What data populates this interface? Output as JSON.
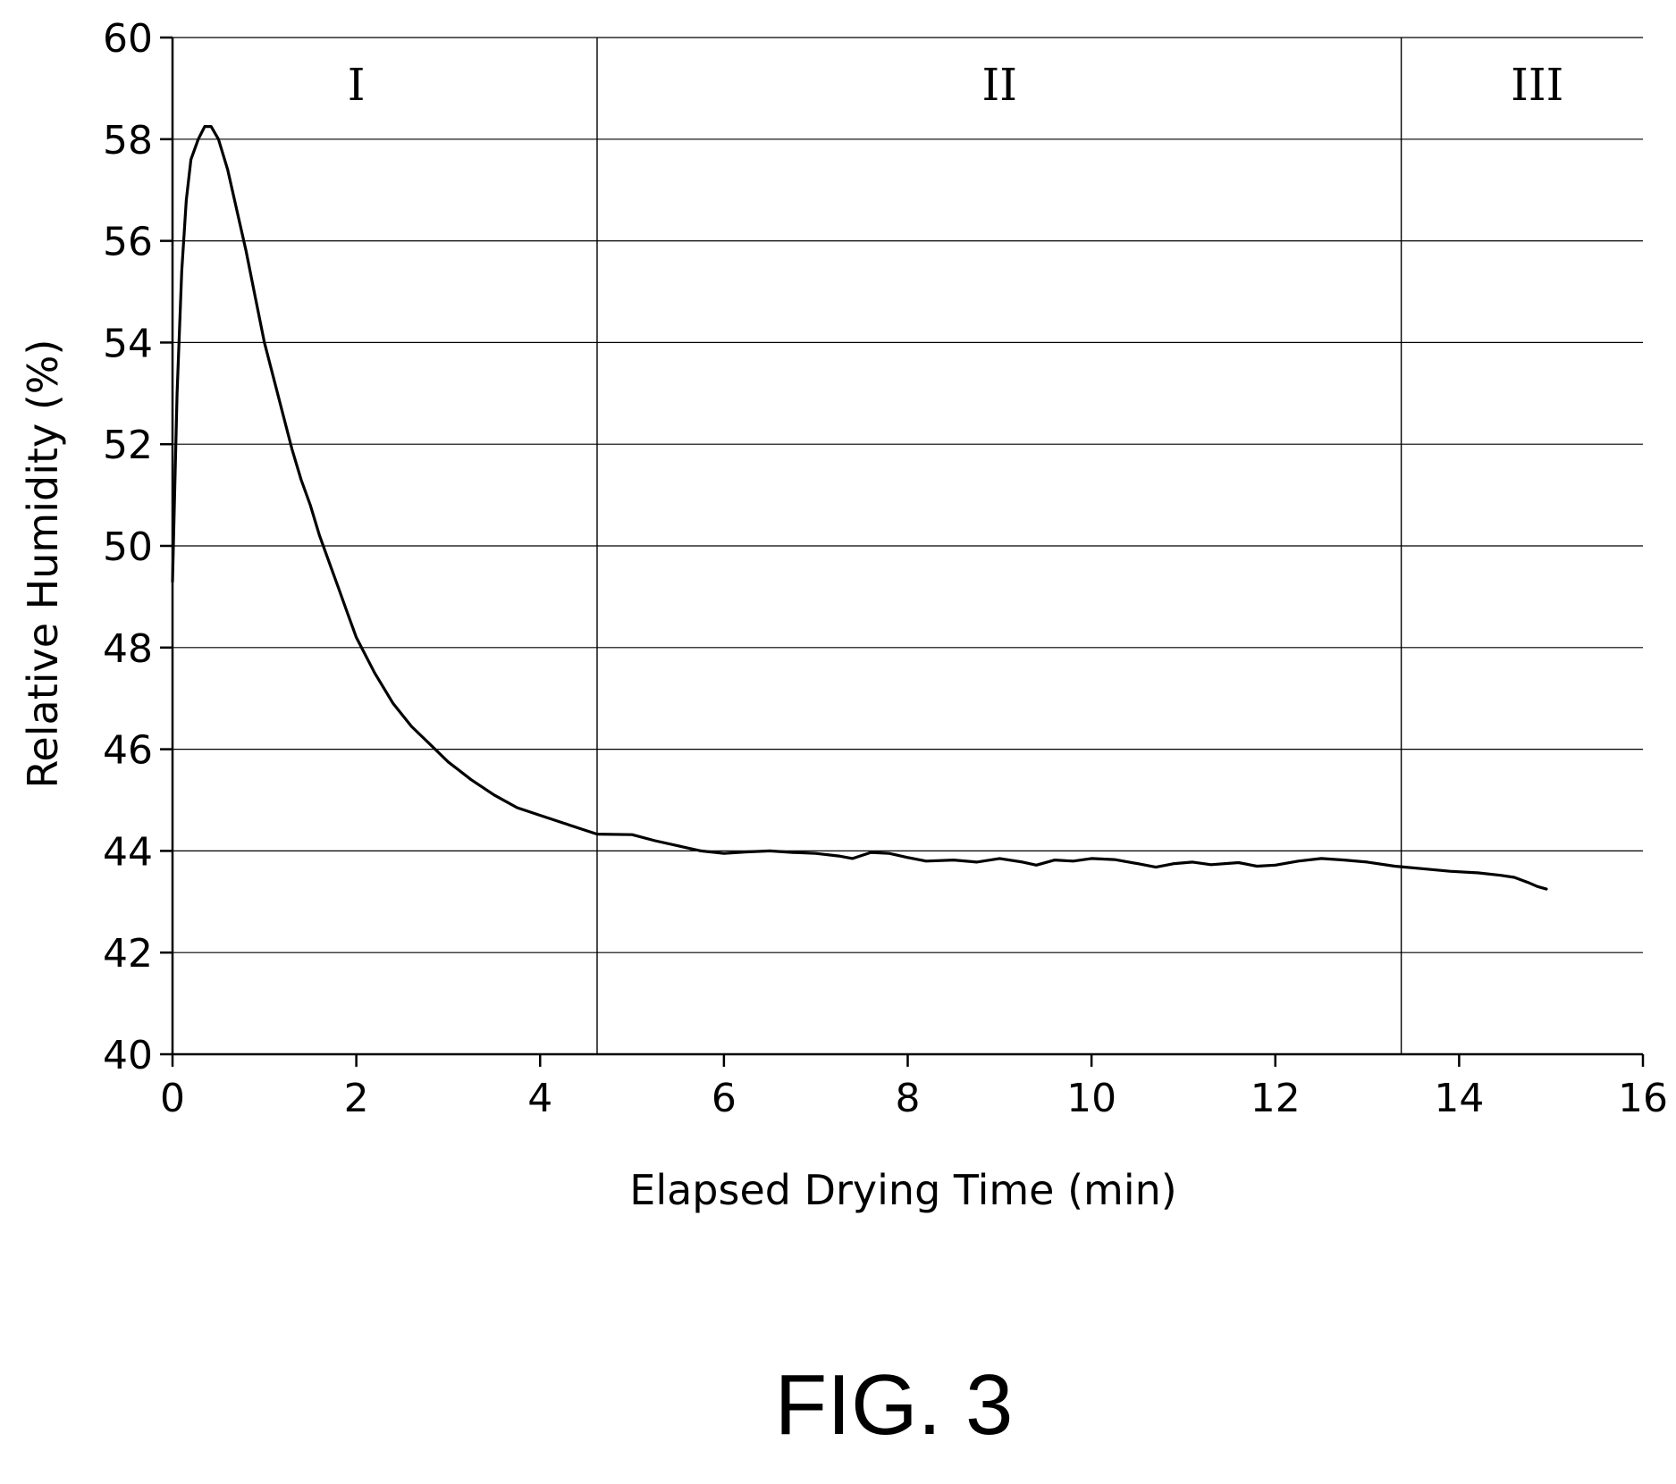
{
  "chart_data": {
    "type": "line",
    "title": "",
    "xlabel": "Elapsed Drying Time (min)",
    "ylabel": "Relative Humidity (%)",
    "xlim": [
      0,
      16
    ],
    "ylim": [
      40,
      60
    ],
    "x_ticks": [
      0,
      2,
      4,
      6,
      8,
      10,
      12,
      14,
      16
    ],
    "y_ticks": [
      40,
      42,
      44,
      46,
      48,
      50,
      52,
      54,
      56,
      58,
      60
    ],
    "grid": {
      "horizontal": true,
      "vertical": false
    },
    "region_boundaries": [
      4.62,
      13.37
    ],
    "regions": [
      {
        "label": "I",
        "x": 2.0
      },
      {
        "label": "II",
        "x": 9.0
      },
      {
        "label": "III",
        "x": 14.85
      }
    ],
    "series": [
      {
        "color": "#000000",
        "points": [
          [
            0.0,
            49.3
          ],
          [
            0.05,
            53.0
          ],
          [
            0.1,
            55.4
          ],
          [
            0.15,
            56.8
          ],
          [
            0.2,
            57.6
          ],
          [
            0.28,
            58.0
          ],
          [
            0.35,
            58.25
          ],
          [
            0.42,
            58.25
          ],
          [
            0.5,
            58.0
          ],
          [
            0.6,
            57.4
          ],
          [
            0.7,
            56.6
          ],
          [
            0.8,
            55.8
          ],
          [
            0.9,
            54.9
          ],
          [
            1.0,
            54.0
          ],
          [
            1.1,
            53.3
          ],
          [
            1.2,
            52.6
          ],
          [
            1.3,
            51.9
          ],
          [
            1.4,
            51.3
          ],
          [
            1.5,
            50.8
          ],
          [
            1.6,
            50.2
          ],
          [
            1.7,
            49.7
          ],
          [
            1.8,
            49.2
          ],
          [
            1.9,
            48.7
          ],
          [
            2.0,
            48.2
          ],
          [
            2.2,
            47.5
          ],
          [
            2.4,
            46.9
          ],
          [
            2.6,
            46.45
          ],
          [
            2.8,
            46.1
          ],
          [
            3.0,
            45.75
          ],
          [
            3.25,
            45.4
          ],
          [
            3.5,
            45.1
          ],
          [
            3.75,
            44.85
          ],
          [
            4.0,
            44.7
          ],
          [
            4.25,
            44.55
          ],
          [
            4.5,
            44.4
          ],
          [
            4.62,
            44.33
          ],
          [
            5.0,
            44.32
          ],
          [
            5.25,
            44.2
          ],
          [
            5.5,
            44.1
          ],
          [
            5.75,
            44.0
          ],
          [
            6.0,
            43.95
          ],
          [
            6.25,
            43.98
          ],
          [
            6.5,
            44.0
          ],
          [
            6.75,
            43.97
          ],
          [
            7.0,
            43.95
          ],
          [
            7.25,
            43.9
          ],
          [
            7.4,
            43.85
          ],
          [
            7.6,
            43.97
          ],
          [
            7.8,
            43.95
          ],
          [
            8.0,
            43.87
          ],
          [
            8.2,
            43.8
          ],
          [
            8.5,
            43.82
          ],
          [
            8.75,
            43.78
          ],
          [
            9.0,
            43.85
          ],
          [
            9.25,
            43.78
          ],
          [
            9.4,
            43.72
          ],
          [
            9.6,
            43.82
          ],
          [
            9.8,
            43.8
          ],
          [
            10.0,
            43.85
          ],
          [
            10.25,
            43.83
          ],
          [
            10.5,
            43.75
          ],
          [
            10.7,
            43.68
          ],
          [
            10.9,
            43.75
          ],
          [
            11.1,
            43.78
          ],
          [
            11.3,
            43.73
          ],
          [
            11.6,
            43.77
          ],
          [
            11.8,
            43.7
          ],
          [
            12.0,
            43.72
          ],
          [
            12.25,
            43.8
          ],
          [
            12.5,
            43.85
          ],
          [
            12.75,
            43.82
          ],
          [
            13.0,
            43.78
          ],
          [
            13.3,
            43.7
          ],
          [
            13.6,
            43.65
          ],
          [
            13.9,
            43.6
          ],
          [
            14.2,
            43.57
          ],
          [
            14.45,
            43.52
          ],
          [
            14.6,
            43.48
          ],
          [
            14.75,
            43.38
          ],
          [
            14.85,
            43.3
          ],
          [
            14.95,
            43.25
          ]
        ]
      }
    ]
  },
  "caption": "FIG. 3"
}
